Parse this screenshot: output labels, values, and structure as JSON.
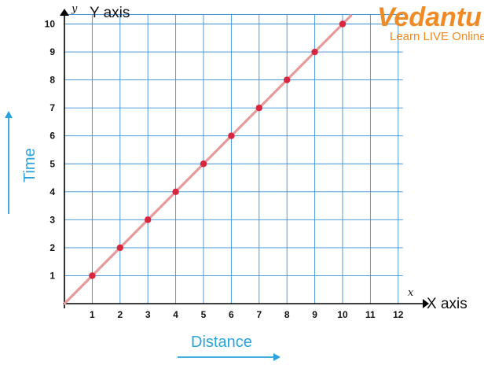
{
  "colors": {
    "grid": "#3b8fd6",
    "fit_line": "#e79a9a",
    "points": "#d7263d",
    "axis": "#000000",
    "dimension": "#2aa3dd",
    "brand": "#f08a24"
  },
  "logo": {
    "text": "Vedantu",
    "tagline": "Learn LIVE Online"
  },
  "dimension_labels": {
    "x": "Distance",
    "y": "Time"
  },
  "chart_data": {
    "type": "scatter",
    "x": [
      1,
      2,
      3,
      4,
      5,
      6,
      7,
      8,
      9,
      10
    ],
    "y": [
      1,
      2,
      3,
      4,
      5,
      6,
      7,
      8,
      9,
      10
    ],
    "trend_line": true,
    "xlim": [
      0,
      12
    ],
    "ylim": [
      0,
      10
    ],
    "x_ticks": [
      "1",
      "2",
      "3",
      "4",
      "5",
      "6",
      "7",
      "8",
      "9",
      "10",
      "11",
      "12"
    ],
    "y_ticks": [
      "1",
      "2",
      "3",
      "4",
      "5",
      "6",
      "7",
      "8",
      "9",
      "10"
    ],
    "x_var": "x",
    "y_var": "y",
    "xlabel": "X axis",
    "ylabel": "Y axis",
    "grid": true
  }
}
